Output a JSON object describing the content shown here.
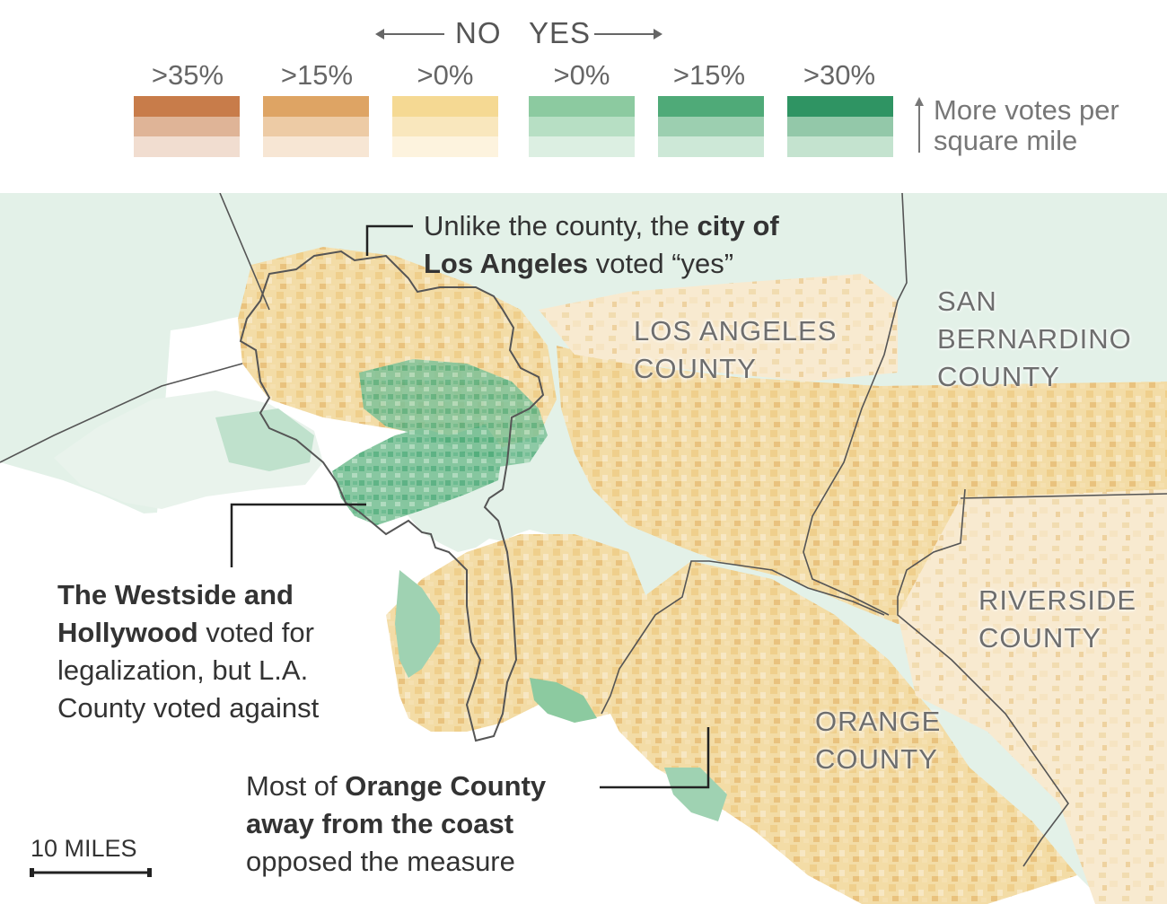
{
  "legend": {
    "no_label": "NO",
    "yes_label": "YES",
    "thresholds": [
      ">35%",
      ">15%",
      ">0%",
      ">0%",
      ">15%",
      ">30%"
    ],
    "density_note_line1": "More votes per",
    "density_note_line2": "square mile",
    "colors": {
      "no_strong": "#c87c4a",
      "no_mid": "#dea464",
      "no_weak": "#f5d993",
      "yes_weak": "#8ccaa0",
      "yes_mid": "#4faa78",
      "yes_strong": "#2f9463"
    }
  },
  "counties": {
    "los_angeles_line1": "LOS ANGELES",
    "los_angeles_line2": "COUNTY",
    "san_bernardino_line1": "SAN",
    "san_bernardino_line2": "BERNARDINO",
    "san_bernardino_line3": "COUNTY",
    "riverside_line1": "RIVERSIDE",
    "riverside_line2": "COUNTY",
    "orange_line1": "ORANGE",
    "orange_line2": "COUNTY"
  },
  "annotations": {
    "city": {
      "pre": "Unlike the county, the ",
      "bold1": "city of",
      "bold2": "Los Angeles",
      "post": " voted “yes”"
    },
    "westside": {
      "bold1": "The Westside and",
      "bold2": "Hollywood",
      "post2": " voted for",
      "line3": "legalization, but L.A.",
      "line4": "County voted against"
    },
    "orange": {
      "pre": "Most of ",
      "bold1": "Orange County",
      "bold2": "away from the coast",
      "line3": "opposed the measure"
    }
  },
  "scale": {
    "label": "10 MILES"
  }
}
